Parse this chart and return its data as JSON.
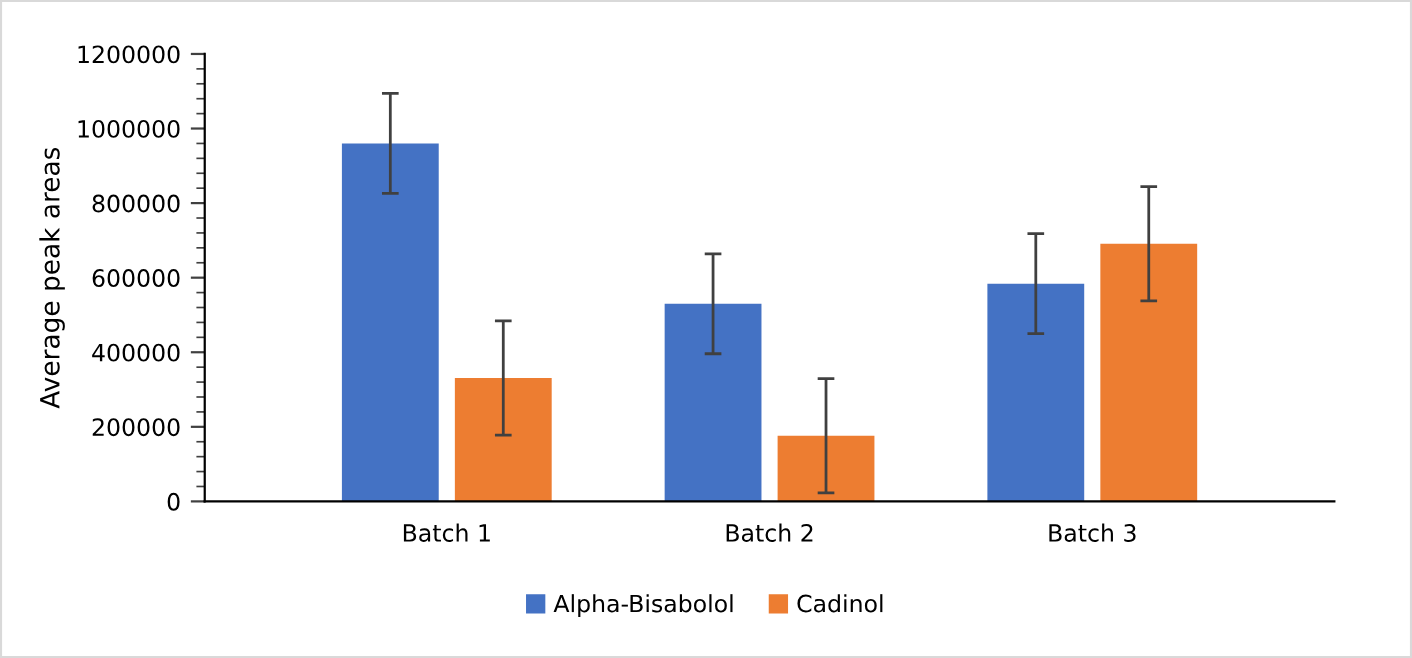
{
  "chart_data": {
    "type": "bar",
    "ylabel": "Average peak areas",
    "categories": [
      "Batch 1",
      "Batch 2",
      "Batch 3"
    ],
    "series": [
      {
        "name": "Alpha-Bisabolol",
        "color": "#4472c4",
        "values": [
          960000,
          530000,
          584000
        ],
        "errors": [
          134000,
          134000,
          134000
        ]
      },
      {
        "name": "Cadinol",
        "color": "#ed7d31",
        "values": [
          331000,
          176000,
          691000
        ],
        "errors": [
          153000,
          153000,
          153000
        ]
      }
    ],
    "ylim": [
      0,
      1200000
    ],
    "yticks": [
      0,
      200000,
      400000,
      600000,
      800000,
      1000000,
      1200000
    ],
    "grid": false,
    "legend": "bottom"
  }
}
